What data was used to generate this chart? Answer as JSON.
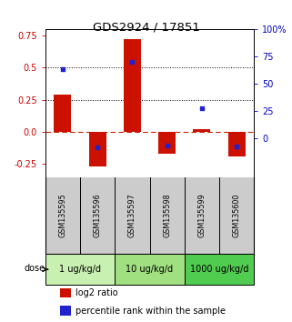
{
  "title": "GDS2924 / 17851",
  "samples": [
    "GSM135595",
    "GSM135596",
    "GSM135597",
    "GSM135598",
    "GSM135599",
    "GSM135600"
  ],
  "log2_ratio": [
    0.29,
    -0.27,
    0.72,
    -0.17,
    0.02,
    -0.19
  ],
  "percentile_rank_raw": [
    63,
    8,
    70,
    6,
    28,
    7
  ],
  "ylim_left": [
    -0.35,
    0.8
  ],
  "ylim_right": [
    -12.25,
    122.5
  ],
  "yticks_left": [
    -0.25,
    0.0,
    0.25,
    0.5,
    0.75
  ],
  "yticks_right": [
    0,
    25,
    50,
    75,
    100
  ],
  "hlines": [
    0.25,
    0.5
  ],
  "dose_groups": [
    {
      "label": "1 ug/kg/d",
      "samples": [
        0,
        1
      ],
      "color": "#c8f0b0"
    },
    {
      "label": "10 ug/kg/d",
      "samples": [
        2,
        3
      ],
      "color": "#a0e080"
    },
    {
      "label": "1000 ug/kg/d",
      "samples": [
        4,
        5
      ],
      "color": "#50cc50"
    }
  ],
  "bar_color": "#cc1100",
  "dot_color": "#2222cc",
  "zero_line_color": "#cc2200",
  "hline_color": "#000000",
  "label_area_color": "#cccccc",
  "bar_width": 0.5,
  "dot_size": 12,
  "left_tick_color": "#cc0000",
  "right_tick_color": "#0000cc"
}
